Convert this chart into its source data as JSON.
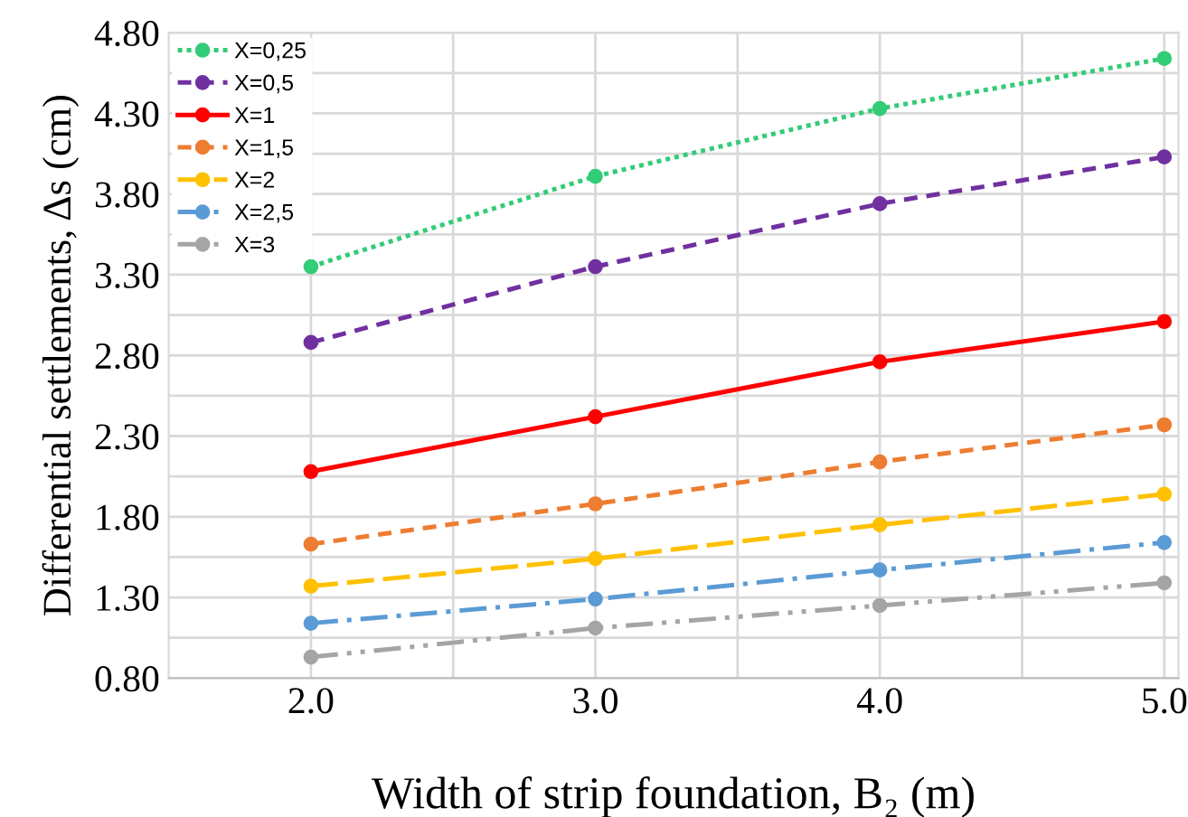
{
  "chart_data": {
    "type": "line",
    "xlabel": "Width of strip foundation, B₂ (m)",
    "ylabel": "Differential settlements, Δs (cm)",
    "x": [
      2.0,
      3.0,
      4.0,
      5.0
    ],
    "xlim": [
      1.5,
      5.05
    ],
    "xticks": [
      {
        "value": 2.0,
        "label": "2.0"
      },
      {
        "value": 2.5,
        "label": null
      },
      {
        "value": 3.0,
        "label": "3.0"
      },
      {
        "value": 3.5,
        "label": null
      },
      {
        "value": 4.0,
        "label": "4.0"
      },
      {
        "value": 4.5,
        "label": null
      },
      {
        "value": 5.0,
        "label": "5.0"
      }
    ],
    "ylim": [
      0.8,
      4.8
    ],
    "yticks": [
      {
        "value": 0.8,
        "label": "0.80"
      },
      {
        "value": 1.05,
        "label": null
      },
      {
        "value": 1.3,
        "label": "1.30"
      },
      {
        "value": 1.55,
        "label": null
      },
      {
        "value": 1.8,
        "label": "1.80"
      },
      {
        "value": 2.05,
        "label": null
      },
      {
        "value": 2.3,
        "label": "2.30"
      },
      {
        "value": 2.55,
        "label": null
      },
      {
        "value": 2.8,
        "label": "2.80"
      },
      {
        "value": 3.05,
        "label": null
      },
      {
        "value": 3.3,
        "label": "3.30"
      },
      {
        "value": 3.55,
        "label": null
      },
      {
        "value": 3.8,
        "label": "3.80"
      },
      {
        "value": 4.05,
        "label": null
      },
      {
        "value": 4.3,
        "label": "4.30"
      },
      {
        "value": 4.55,
        "label": null
      },
      {
        "value": 4.8,
        "label": "4.80"
      }
    ],
    "grid": true,
    "legend": "top left",
    "marker": "circle",
    "series": [
      {
        "name": "X=0,25",
        "color": "#33cc77",
        "line_style": "dotted",
        "values": [
          3.35,
          3.91,
          4.33,
          4.64
        ]
      },
      {
        "name": "X=0,5",
        "color": "#7030a0",
        "line_style": "dashed",
        "values": [
          2.88,
          3.35,
          3.74,
          4.03
        ]
      },
      {
        "name": "X=1",
        "color": "#ff0000",
        "line_style": "solid",
        "values": [
          2.08,
          2.42,
          2.76,
          3.01
        ]
      },
      {
        "name": "X=1,5",
        "color": "#ed7d31",
        "line_style": "dashed",
        "values": [
          1.63,
          1.88,
          2.14,
          2.37
        ]
      },
      {
        "name": "X=2",
        "color": "#ffc000",
        "line_style": "longdash",
        "values": [
          1.37,
          1.54,
          1.75,
          1.94
        ]
      },
      {
        "name": "X=2,5",
        "color": "#5b9bd5",
        "line_style": "dashdot",
        "values": [
          1.14,
          1.29,
          1.47,
          1.64
        ]
      },
      {
        "name": "X=3",
        "color": "#a5a5a5",
        "line_style": "dashdotdot",
        "values": [
          0.93,
          1.11,
          1.25,
          1.39
        ]
      }
    ]
  }
}
